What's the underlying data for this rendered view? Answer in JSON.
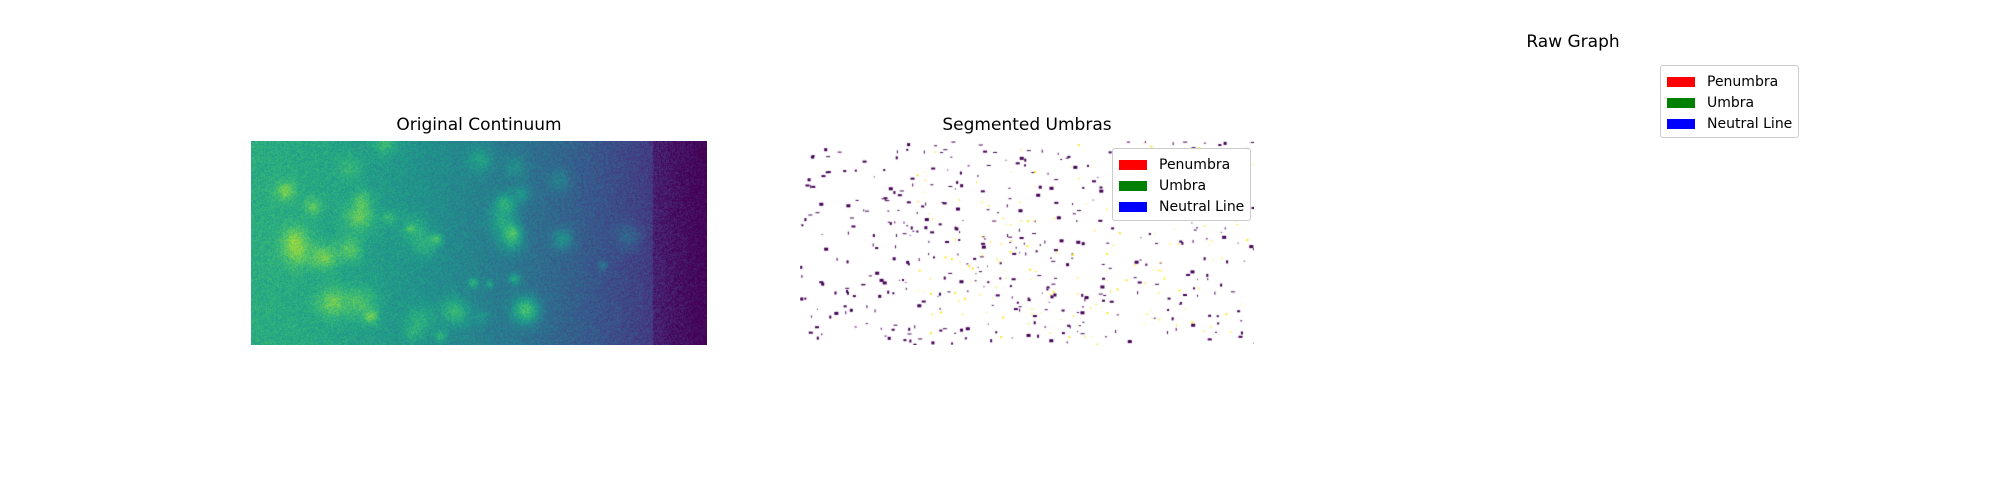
{
  "figure": {
    "panels": [
      {
        "title": "Original Continuum"
      },
      {
        "title": "Segmented Umbras"
      },
      {
        "title": "Raw Graph"
      }
    ],
    "legend_items": [
      {
        "label": "Penumbra",
        "color": "#ff0000"
      },
      {
        "label": "Umbra",
        "color": "#008000"
      },
      {
        "label": "Neutral Line",
        "color": "#0000ff"
      }
    ]
  },
  "chart_data": [
    {
      "type": "heatmap",
      "title": "Original Continuum",
      "colormap": "viridis",
      "axes": "off",
      "value_range": [
        0,
        1
      ],
      "trend": "intensity high (green/yellow) on the left, decreasing to dark purple on the right",
      "bright_features": "yellow-green filament-like patches near center-left"
    },
    {
      "type": "heatmap",
      "title": "Segmented Umbras",
      "colormap": "viridis (masked)",
      "axes": "off",
      "classes": [
        {
          "value": 0,
          "color": "#440154",
          "description": "dark purple speckles"
        },
        {
          "value": 1,
          "color": "#fde725",
          "description": "yellow speckles"
        }
      ],
      "background": "white (masked)",
      "legend": [
        "Penumbra",
        "Umbra",
        "Neutral Line"
      ],
      "legend_position": "upper right"
    },
    {
      "type": "other",
      "title": "Raw Graph",
      "axes": "off",
      "content": "empty",
      "legend": [
        "Penumbra",
        "Umbra",
        "Neutral Line"
      ],
      "legend_position": "upper right"
    }
  ]
}
